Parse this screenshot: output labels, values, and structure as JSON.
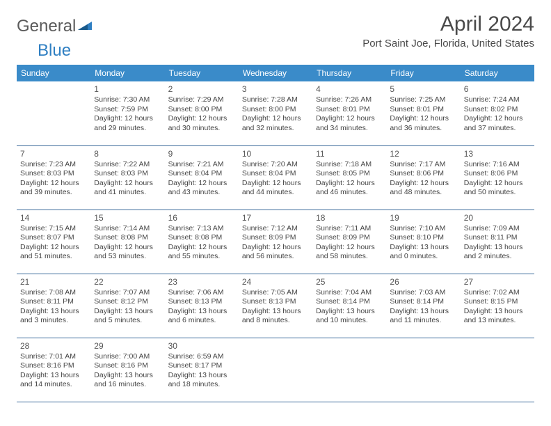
{
  "logo": {
    "word1": "General",
    "word2": "Blue"
  },
  "title": "April 2024",
  "location": "Port Saint Joe, Florida, United States",
  "colors": {
    "header_bg": "#3a8bc9",
    "header_text": "#ffffff",
    "row_border": "#3a6a9a",
    "text": "#444444"
  },
  "day_headers": [
    "Sunday",
    "Monday",
    "Tuesday",
    "Wednesday",
    "Thursday",
    "Friday",
    "Saturday"
  ],
  "start_weekday": 1,
  "days": [
    {
      "n": 1,
      "sr": "7:30 AM",
      "ss": "7:59 PM",
      "dl": "12 hours and 29 minutes."
    },
    {
      "n": 2,
      "sr": "7:29 AM",
      "ss": "8:00 PM",
      "dl": "12 hours and 30 minutes."
    },
    {
      "n": 3,
      "sr": "7:28 AM",
      "ss": "8:00 PM",
      "dl": "12 hours and 32 minutes."
    },
    {
      "n": 4,
      "sr": "7:26 AM",
      "ss": "8:01 PM",
      "dl": "12 hours and 34 minutes."
    },
    {
      "n": 5,
      "sr": "7:25 AM",
      "ss": "8:01 PM",
      "dl": "12 hours and 36 minutes."
    },
    {
      "n": 6,
      "sr": "7:24 AM",
      "ss": "8:02 PM",
      "dl": "12 hours and 37 minutes."
    },
    {
      "n": 7,
      "sr": "7:23 AM",
      "ss": "8:03 PM",
      "dl": "12 hours and 39 minutes."
    },
    {
      "n": 8,
      "sr": "7:22 AM",
      "ss": "8:03 PM",
      "dl": "12 hours and 41 minutes."
    },
    {
      "n": 9,
      "sr": "7:21 AM",
      "ss": "8:04 PM",
      "dl": "12 hours and 43 minutes."
    },
    {
      "n": 10,
      "sr": "7:20 AM",
      "ss": "8:04 PM",
      "dl": "12 hours and 44 minutes."
    },
    {
      "n": 11,
      "sr": "7:18 AM",
      "ss": "8:05 PM",
      "dl": "12 hours and 46 minutes."
    },
    {
      "n": 12,
      "sr": "7:17 AM",
      "ss": "8:06 PM",
      "dl": "12 hours and 48 minutes."
    },
    {
      "n": 13,
      "sr": "7:16 AM",
      "ss": "8:06 PM",
      "dl": "12 hours and 50 minutes."
    },
    {
      "n": 14,
      "sr": "7:15 AM",
      "ss": "8:07 PM",
      "dl": "12 hours and 51 minutes."
    },
    {
      "n": 15,
      "sr": "7:14 AM",
      "ss": "8:08 PM",
      "dl": "12 hours and 53 minutes."
    },
    {
      "n": 16,
      "sr": "7:13 AM",
      "ss": "8:08 PM",
      "dl": "12 hours and 55 minutes."
    },
    {
      "n": 17,
      "sr": "7:12 AM",
      "ss": "8:09 PM",
      "dl": "12 hours and 56 minutes."
    },
    {
      "n": 18,
      "sr": "7:11 AM",
      "ss": "8:09 PM",
      "dl": "12 hours and 58 minutes."
    },
    {
      "n": 19,
      "sr": "7:10 AM",
      "ss": "8:10 PM",
      "dl": "13 hours and 0 minutes."
    },
    {
      "n": 20,
      "sr": "7:09 AM",
      "ss": "8:11 PM",
      "dl": "13 hours and 2 minutes."
    },
    {
      "n": 21,
      "sr": "7:08 AM",
      "ss": "8:11 PM",
      "dl": "13 hours and 3 minutes."
    },
    {
      "n": 22,
      "sr": "7:07 AM",
      "ss": "8:12 PM",
      "dl": "13 hours and 5 minutes."
    },
    {
      "n": 23,
      "sr": "7:06 AM",
      "ss": "8:13 PM",
      "dl": "13 hours and 6 minutes."
    },
    {
      "n": 24,
      "sr": "7:05 AM",
      "ss": "8:13 PM",
      "dl": "13 hours and 8 minutes."
    },
    {
      "n": 25,
      "sr": "7:04 AM",
      "ss": "8:14 PM",
      "dl": "13 hours and 10 minutes."
    },
    {
      "n": 26,
      "sr": "7:03 AM",
      "ss": "8:14 PM",
      "dl": "13 hours and 11 minutes."
    },
    {
      "n": 27,
      "sr": "7:02 AM",
      "ss": "8:15 PM",
      "dl": "13 hours and 13 minutes."
    },
    {
      "n": 28,
      "sr": "7:01 AM",
      "ss": "8:16 PM",
      "dl": "13 hours and 14 minutes."
    },
    {
      "n": 29,
      "sr": "7:00 AM",
      "ss": "8:16 PM",
      "dl": "13 hours and 16 minutes."
    },
    {
      "n": 30,
      "sr": "6:59 AM",
      "ss": "8:17 PM",
      "dl": "13 hours and 18 minutes."
    }
  ],
  "labels": {
    "sunrise": "Sunrise:",
    "sunset": "Sunset:",
    "daylight": "Daylight:"
  }
}
